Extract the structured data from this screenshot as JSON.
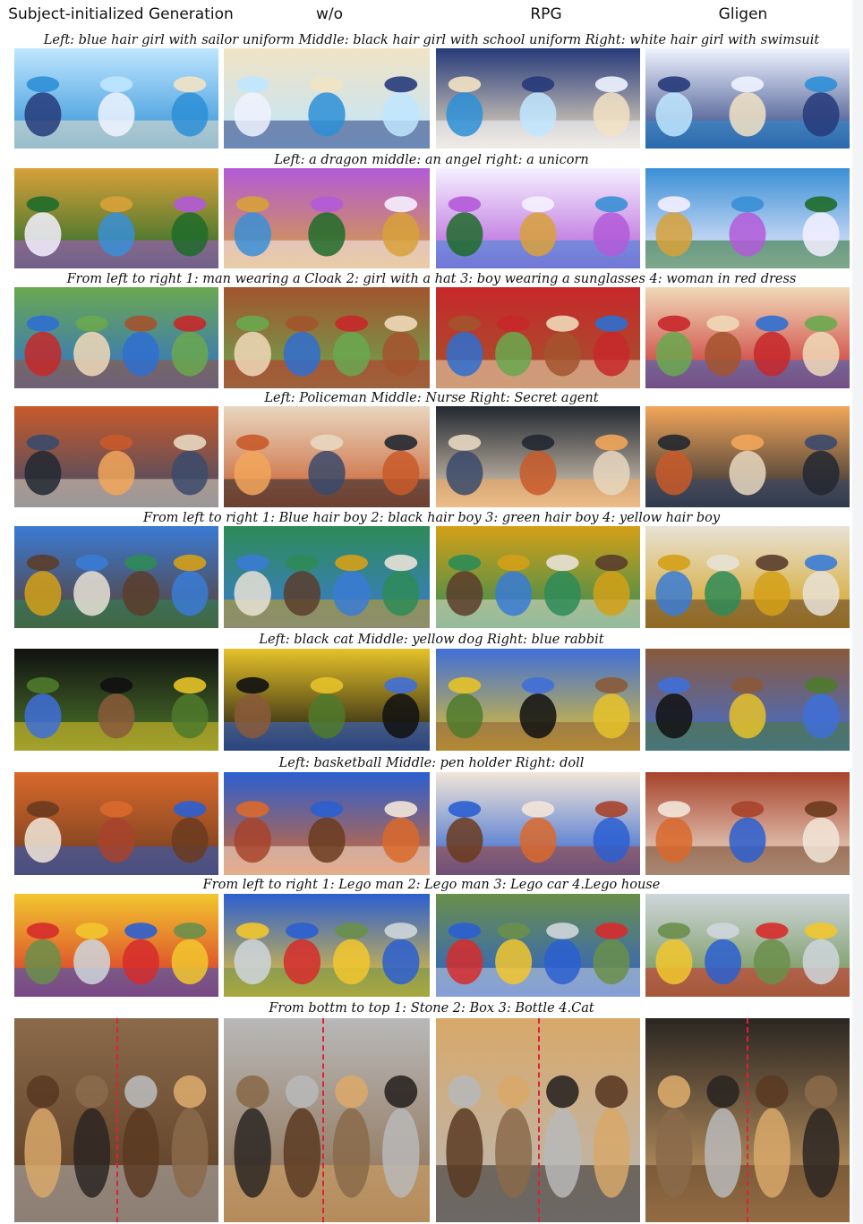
{
  "column_headers": [
    "Subject-initialized Generation",
    "w/o",
    "RPG",
    "Gligen"
  ],
  "captions": [
    "Left: blue hair girl with sailor uniform  Middle: black hair girl with school uniform  Right: white hair girl with swimsuit",
    "Left: a dragon  middle: an angel  right: a unicorn",
    "From left to right  1: man wearing a Cloak  2: girl with a hat  3: boy wearing a sunglasses  4: woman in red dress",
    "Left: Policeman  Middle: Nurse  Right: Secret agent",
    "From left to right  1: Blue hair boy  2: black hair boy  3: green hair boy  4: yellow hair boy",
    "Left: black cat  Middle: yellow dog  Right: blue rabbit",
    "Left: basketball  Middle: pen holder  Right: doll",
    "From left to right  1: Lego man  2: Lego man  3: Lego car  4.Lego house",
    "From bottm to top  1: Stone  2: Box  3: Bottle 4.Cat"
  ],
  "rows": [
    {
      "subject": "anime girls on beach",
      "palette": [
        "#2d8fd6",
        "#bfe6ff",
        "#f2e3c4",
        "#263a7a",
        "#eef3ff"
      ]
    },
    {
      "subject": "dragon angel unicorn fantasy",
      "palette": [
        "#1f6b2a",
        "#d8a13a",
        "#b35ad8",
        "#f5f0ff",
        "#3a8fd6"
      ]
    },
    {
      "subject": "four people in field",
      "palette": [
        "#2f6fd0",
        "#6aa84f",
        "#a3542e",
        "#c7282a",
        "#f0d9b8"
      ]
    },
    {
      "subject": "policeman nurse secret agent street",
      "palette": [
        "#3b4a6b",
        "#c85a2a",
        "#e8d7c0",
        "#222831",
        "#f2a65a"
      ]
    },
    {
      "subject": "four boys with colored hair",
      "palette": [
        "#5a3d2b",
        "#3a7bd5",
        "#2e8b57",
        "#d4a017",
        "#e8e2d6"
      ]
    },
    {
      "subject": "black cat yellow dog blue rabbit",
      "palette": [
        "#4f7a2c",
        "#111111",
        "#e6c229",
        "#3f6fd8",
        "#8a5a3a"
      ]
    },
    {
      "subject": "basketball pen holder doll",
      "palette": [
        "#6b3b1e",
        "#d9692c",
        "#2b5fd0",
        "#f2e6d8",
        "#a7432b"
      ]
    },
    {
      "subject": "lego figures car house",
      "palette": [
        "#d62b2b",
        "#f2c72e",
        "#2b5fd0",
        "#6a8f4a",
        "#cfd6dc"
      ]
    },
    {
      "subject": "cat bottle box stone stacked",
      "palette": [
        "#5a3a22",
        "#8a6a4a",
        "#b8b8b8",
        "#d8a86a",
        "#2b2622"
      ]
    }
  ],
  "colors": {
    "divider": "#e0203a",
    "text": "#111111",
    "background": "#ffffff"
  }
}
